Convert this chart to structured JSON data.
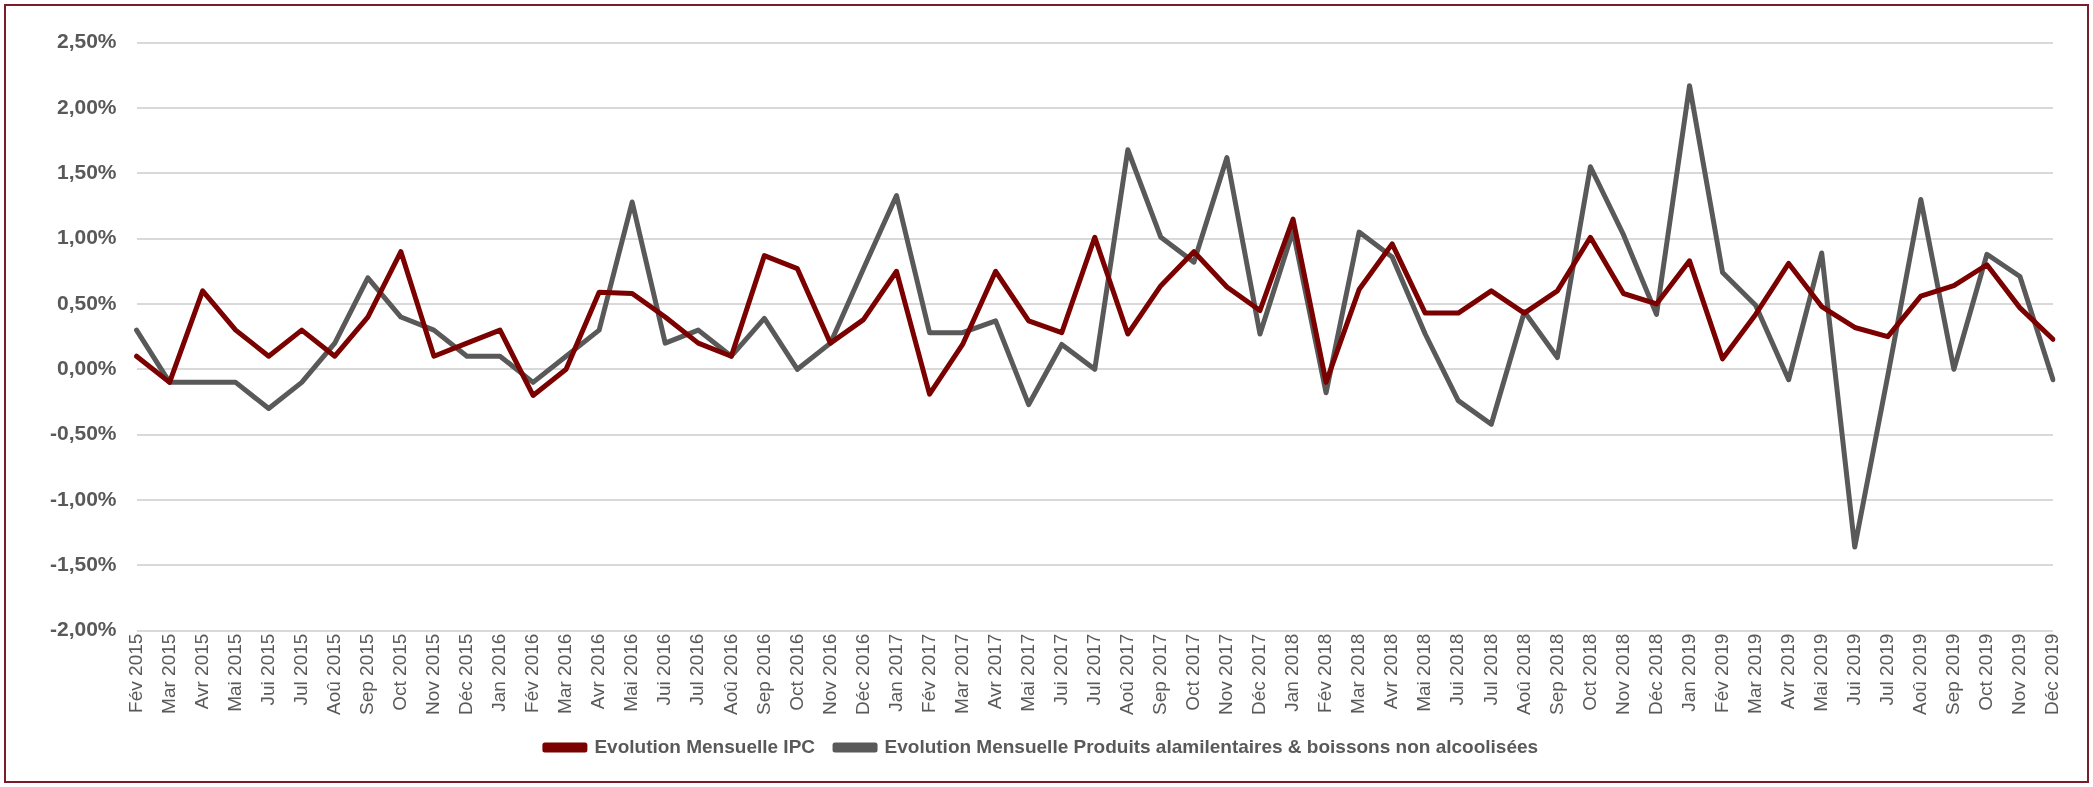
{
  "chart_data": {
    "type": "line",
    "categories": [
      "Fév 2015",
      "Mar 2015",
      "Avr 2015",
      "Mai 2015",
      "Jui 2015",
      "Jul 2015",
      "Aoû 2015",
      "Sep 2015",
      "Oct 2015",
      "Nov 2015",
      "Déc 2015",
      "Jan 2016",
      "Fév 2016",
      "Mar 2016",
      "Avr 2016",
      "Mai 2016",
      "Jui 2016",
      "Jul 2016",
      "Aoû 2016",
      "Sep 2016",
      "Oct 2016",
      "Nov 2016",
      "Déc 2016",
      "Jan 2017",
      "Fév 2017",
      "Mar 2017",
      "Avr 2017",
      "Mai 2017",
      "Jui 2017",
      "Jul 2017",
      "Aoû 2017",
      "Sep 2017",
      "Oct 2017",
      "Nov 2017",
      "Déc 2017",
      "Jan 2018",
      "Fév 2018",
      "Mar 2018",
      "Avr 2018",
      "Mai 2018",
      "Jui 2018",
      "Jul 2018",
      "Aoû 2018",
      "Sep 2018",
      "Oct 2018",
      "Nov 2018",
      "Déc 2018",
      "Jan 2019",
      "Fév 2019",
      "Mar 2019",
      "Avr 2019",
      "Mai 2019",
      "Jui 2019",
      "Jul 2019",
      "Aoû 2019",
      "Sep 2019",
      "Oct 2019",
      "Nov 2019",
      "Déc 2019"
    ],
    "series": [
      {
        "name": "Evolution Mensuelle IPC",
        "color": "#7b0000",
        "values": [
          0.1,
          -0.1,
          0.6,
          0.3,
          0.1,
          0.3,
          0.1,
          0.4,
          0.9,
          0.1,
          0.2,
          0.3,
          -0.2,
          0.0,
          0.59,
          0.58,
          0.4,
          0.2,
          0.1,
          0.87,
          0.77,
          0.2,
          0.38,
          0.75,
          -0.19,
          0.19,
          0.75,
          0.37,
          0.28,
          1.01,
          0.27,
          0.64,
          0.9,
          0.63,
          0.45,
          1.15,
          -0.1,
          0.61,
          0.96,
          0.43,
          0.43,
          0.6,
          0.43,
          0.6,
          1.01,
          0.58,
          0.5,
          0.83,
          0.08,
          0.42,
          0.81,
          0.48,
          0.32,
          0.25,
          0.56,
          0.64,
          0.8,
          0.47,
          0.23
        ]
      },
      {
        "name": "Evolution Mensuelle Produits alamilentaires & boissons non alcoolisées",
        "color": "#595959",
        "values": [
          0.3,
          -0.1,
          -0.1,
          -0.1,
          -0.3,
          -0.1,
          0.2,
          0.7,
          0.4,
          0.3,
          0.1,
          0.1,
          -0.1,
          0.1,
          0.3,
          1.28,
          0.2,
          0.3,
          0.1,
          0.39,
          0.0,
          0.2,
          0.77,
          1.33,
          0.28,
          0.28,
          0.37,
          -0.27,
          0.19,
          0.0,
          1.68,
          1.01,
          0.82,
          1.62,
          0.27,
          1.06,
          -0.18,
          1.05,
          0.86,
          0.27,
          -0.24,
          -0.42,
          0.44,
          0.09,
          1.55,
          1.03,
          0.42,
          2.17,
          0.74,
          0.49,
          -0.08,
          0.89,
          -1.36,
          -0.05,
          1.3,
          0.0,
          0.88,
          0.71,
          -0.08
        ]
      }
    ],
    "ylim": [
      -2,
      2.5
    ],
    "yticks": [
      {
        "value": -2,
        "label": "-2,00%"
      },
      {
        "value": -1.5,
        "label": "-1,50%"
      },
      {
        "value": -1,
        "label": "-1,00%"
      },
      {
        "value": -0.5,
        "label": "-0,50%"
      },
      {
        "value": 0,
        "label": "0,00%"
      },
      {
        "value": 0.5,
        "label": "0,50%"
      },
      {
        "value": 1,
        "label": "1,00%"
      },
      {
        "value": 1.5,
        "label": "1,50%"
      },
      {
        "value": 2,
        "label": "2,00%"
      },
      {
        "value": 2.5,
        "label": "2,50%"
      }
    ],
    "grid": "y",
    "legend": "bottom",
    "marker": "none",
    "line_style": "solid"
  }
}
